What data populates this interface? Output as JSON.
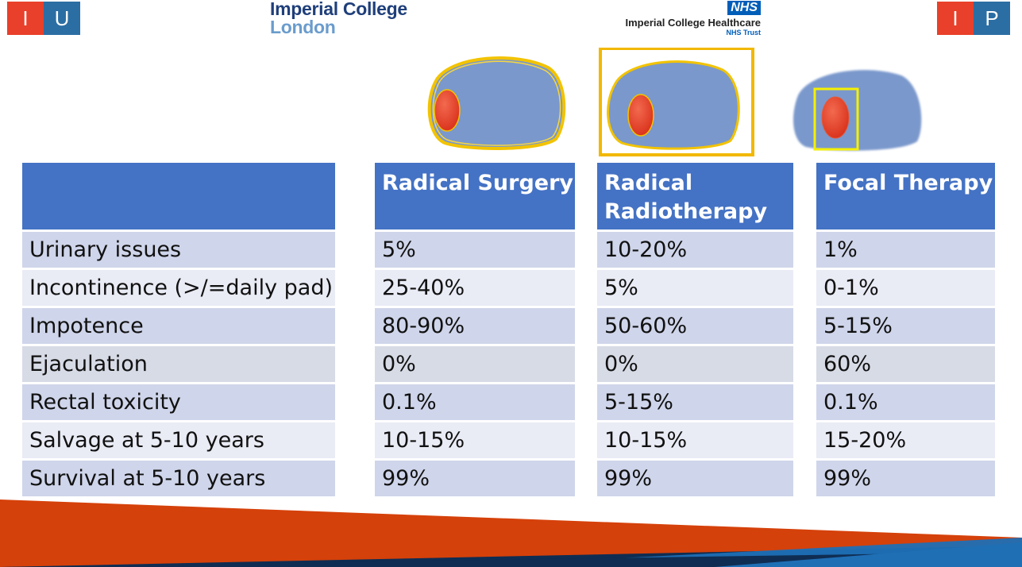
{
  "logos": {
    "left_badge": [
      "I",
      "U"
    ],
    "right_badge": [
      "I",
      "P"
    ],
    "imperial_line1": "Imperial College",
    "imperial_line2": "London",
    "nhs_badge": "NHS",
    "nhs_name": "Imperial College Healthcare",
    "nhs_trust": "NHS Trust"
  },
  "table": {
    "headers": [
      "",
      "Radical Surgery",
      "Radical Radiotherapy",
      "Focal Therapy"
    ],
    "rows": [
      [
        "Urinary issues",
        "5%",
        "10-20%",
        "1%"
      ],
      [
        "Incontinence (>/=daily pad)",
        "25-40%",
        "5%",
        "0-1%"
      ],
      [
        "Impotence",
        "80-90%",
        "50-60%",
        "5-15%"
      ],
      [
        "Ejaculation",
        "0%",
        "0%",
        "60%"
      ],
      [
        "Rectal toxicity",
        "0.1%",
        "5-15%",
        "0.1%"
      ],
      [
        "Salvage at 5-10 years",
        "10-15%",
        "10-15%",
        "15-20%"
      ],
      [
        "Survival at 5-10 years",
        "99%",
        "99%",
        "99%"
      ]
    ]
  },
  "colors": {
    "header_blue": "#4472c4",
    "row_dark": "#cfd5ea",
    "row_light": "#e9ebf5",
    "prostate": "#7a98cc",
    "tumour": "#e8402a",
    "margin_outline": "#f2c300",
    "footer_orange": "#d5410a",
    "footer_navy": "#0f2d52",
    "footer_blue": "#1f6fb5"
  },
  "diagram_icons": [
    "prostate-surgery-icon",
    "prostate-radiotherapy-icon",
    "prostate-focal-icon"
  ]
}
